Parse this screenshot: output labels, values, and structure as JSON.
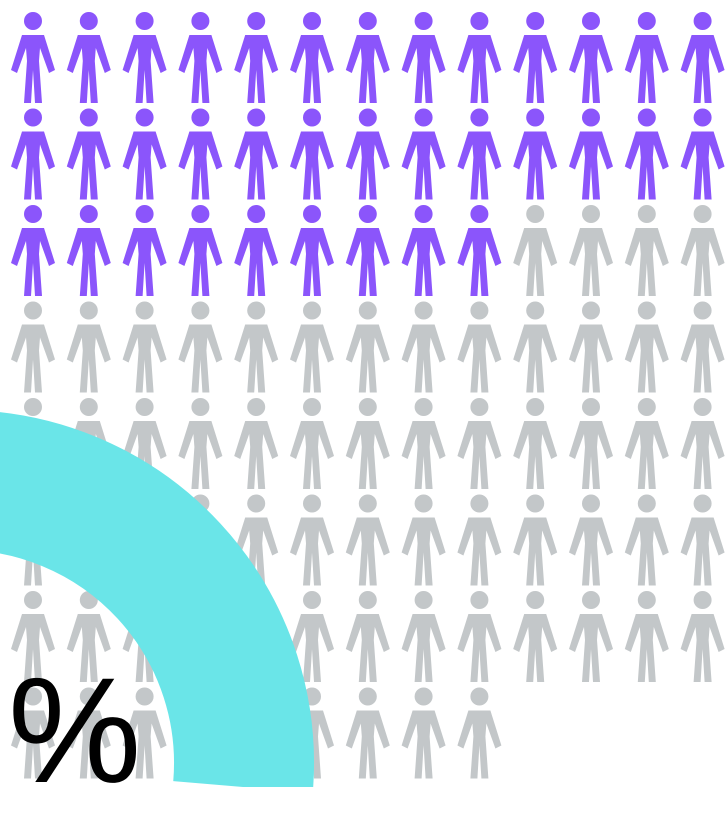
{
  "chart_data": {
    "type": "pictograph",
    "total_icons": 100,
    "highlighted_icons": 35,
    "columns": 13,
    "highlight_color": "#8b55fb",
    "base_color": "#c3c7c9",
    "ring_color": "#6ae5e8",
    "icon": "person-icon",
    "percent_symbol": "%"
  }
}
